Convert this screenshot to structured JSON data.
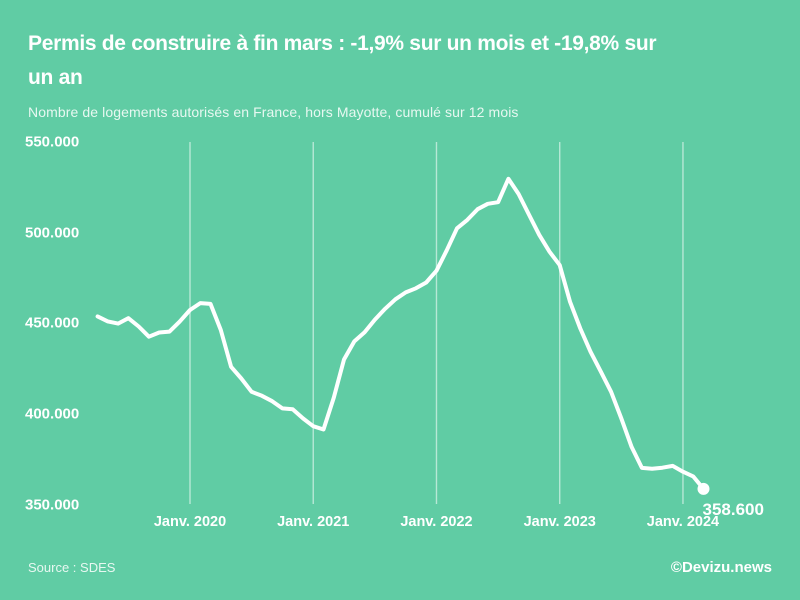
{
  "header": {
    "title": "Permis de construire à fin mars : -1,9% sur un mois et -19,8% sur un an",
    "title_line1": "Permis de construire à fin mars : -1,9% sur un mois et -19,8% sur",
    "title_line2": "un an",
    "subtitle": "Nombre de logements autorisés en France, hors Mayotte, cumulé sur 12 mois"
  },
  "footer": {
    "source": "Source : SDES",
    "credit": "©Devizu.news"
  },
  "colors": {
    "background": "#60cca4",
    "line": "#ffffff",
    "grid": "rgba(255,255,255,0.55)",
    "text": "#ffffff"
  },
  "chart_data": {
    "type": "line",
    "title": "Permis de construire à fin mars : -1,9% sur un mois et -19,8% sur un an",
    "subtitle": "Nombre de logements autorisés en France, hors Mayotte, cumulé sur 12 mois",
    "xlabel": "",
    "ylabel": "",
    "ylim": [
      350000,
      550000
    ],
    "grid": "vertical-only",
    "legend": "none",
    "end_label": "358.600",
    "last_point_value": 358600,
    "variation_month": "-1,9%",
    "variation_year": "-19,8%",
    "yticks": [
      {
        "label": "550.000",
        "value": 550000
      },
      {
        "label": "500.000",
        "value": 500000
      },
      {
        "label": "450.000",
        "value": 450000
      },
      {
        "label": "400.000",
        "value": 400000
      },
      {
        "label": "350.000",
        "value": 350000
      }
    ],
    "xticks": [
      {
        "label": "Janv. 2020",
        "index": 9
      },
      {
        "label": "Janv. 2021",
        "index": 21
      },
      {
        "label": "Janv. 2022",
        "index": 33
      },
      {
        "label": "Janv. 2023",
        "index": 45
      },
      {
        "label": "Janv. 2024",
        "index": 57
      }
    ],
    "points": [
      {
        "m": "avr. 2019",
        "v": 453800
      },
      {
        "m": "mai 2019",
        "v": 451000
      },
      {
        "m": "juin 2019",
        "v": 449800
      },
      {
        "m": "juil. 2019",
        "v": 452800
      },
      {
        "m": "août 2019",
        "v": 448200
      },
      {
        "m": "sept. 2019",
        "v": 442600
      },
      {
        "m": "oct. 2019",
        "v": 444900
      },
      {
        "m": "nov. 2019",
        "v": 445400
      },
      {
        "m": "déc. 2019",
        "v": 450900
      },
      {
        "m": "janv. 2020",
        "v": 457300
      },
      {
        "m": "févr. 2020",
        "v": 461100
      },
      {
        "m": "mars 2020",
        "v": 460700
      },
      {
        "m": "avr. 2020",
        "v": 446300
      },
      {
        "m": "mai 2020",
        "v": 426000
      },
      {
        "m": "juin 2020",
        "v": 419500
      },
      {
        "m": "juil. 2020",
        "v": 412200
      },
      {
        "m": "août 2020",
        "v": 410000
      },
      {
        "m": "sept. 2020",
        "v": 407000
      },
      {
        "m": "oct. 2020",
        "v": 403000
      },
      {
        "m": "nov. 2020",
        "v": 402500
      },
      {
        "m": "déc. 2020",
        "v": 397500
      },
      {
        "m": "janv. 2021",
        "v": 393200
      },
      {
        "m": "févr. 2021",
        "v": 391400
      },
      {
        "m": "mars 2021",
        "v": 409000
      },
      {
        "m": "avr. 2021",
        "v": 430000
      },
      {
        "m": "mai 2021",
        "v": 440000
      },
      {
        "m": "juin 2021",
        "v": 445000
      },
      {
        "m": "juil. 2021",
        "v": 452000
      },
      {
        "m": "août 2021",
        "v": 458000
      },
      {
        "m": "sept. 2021",
        "v": 463200
      },
      {
        "m": "oct. 2021",
        "v": 467000
      },
      {
        "m": "nov. 2021",
        "v": 469300
      },
      {
        "m": "déc. 2021",
        "v": 472500
      },
      {
        "m": "janv. 2022",
        "v": 479000
      },
      {
        "m": "févr. 2022",
        "v": 490300
      },
      {
        "m": "mars 2022",
        "v": 502400
      },
      {
        "m": "avr. 2022",
        "v": 507000
      },
      {
        "m": "mai 2022",
        "v": 512900
      },
      {
        "m": "juin 2022",
        "v": 515900
      },
      {
        "m": "juil. 2022",
        "v": 516800
      },
      {
        "m": "août 2022",
        "v": 529700
      },
      {
        "m": "sept. 2022",
        "v": 521300
      },
      {
        "m": "oct. 2022",
        "v": 510000
      },
      {
        "m": "nov. 2022",
        "v": 498800
      },
      {
        "m": "déc. 2022",
        "v": 489500
      },
      {
        "m": "janv. 2023",
        "v": 482100
      },
      {
        "m": "févr. 2023",
        "v": 461900
      },
      {
        "m": "mars 2023",
        "v": 447100
      },
      {
        "m": "avr. 2023",
        "v": 434300
      },
      {
        "m": "mai 2023",
        "v": 423300
      },
      {
        "m": "juin 2023",
        "v": 412200
      },
      {
        "m": "juil. 2023",
        "v": 397500
      },
      {
        "m": "août 2023",
        "v": 381800
      },
      {
        "m": "sept. 2023",
        "v": 370200
      },
      {
        "m": "oct. 2023",
        "v": 369700
      },
      {
        "m": "nov. 2023",
        "v": 370300
      },
      {
        "m": "déc. 2023",
        "v": 371300
      },
      {
        "m": "janv. 2024",
        "v": 368100
      },
      {
        "m": "févr. 2024",
        "v": 365500
      },
      {
        "m": "mars 2024",
        "v": 358600
      }
    ]
  }
}
